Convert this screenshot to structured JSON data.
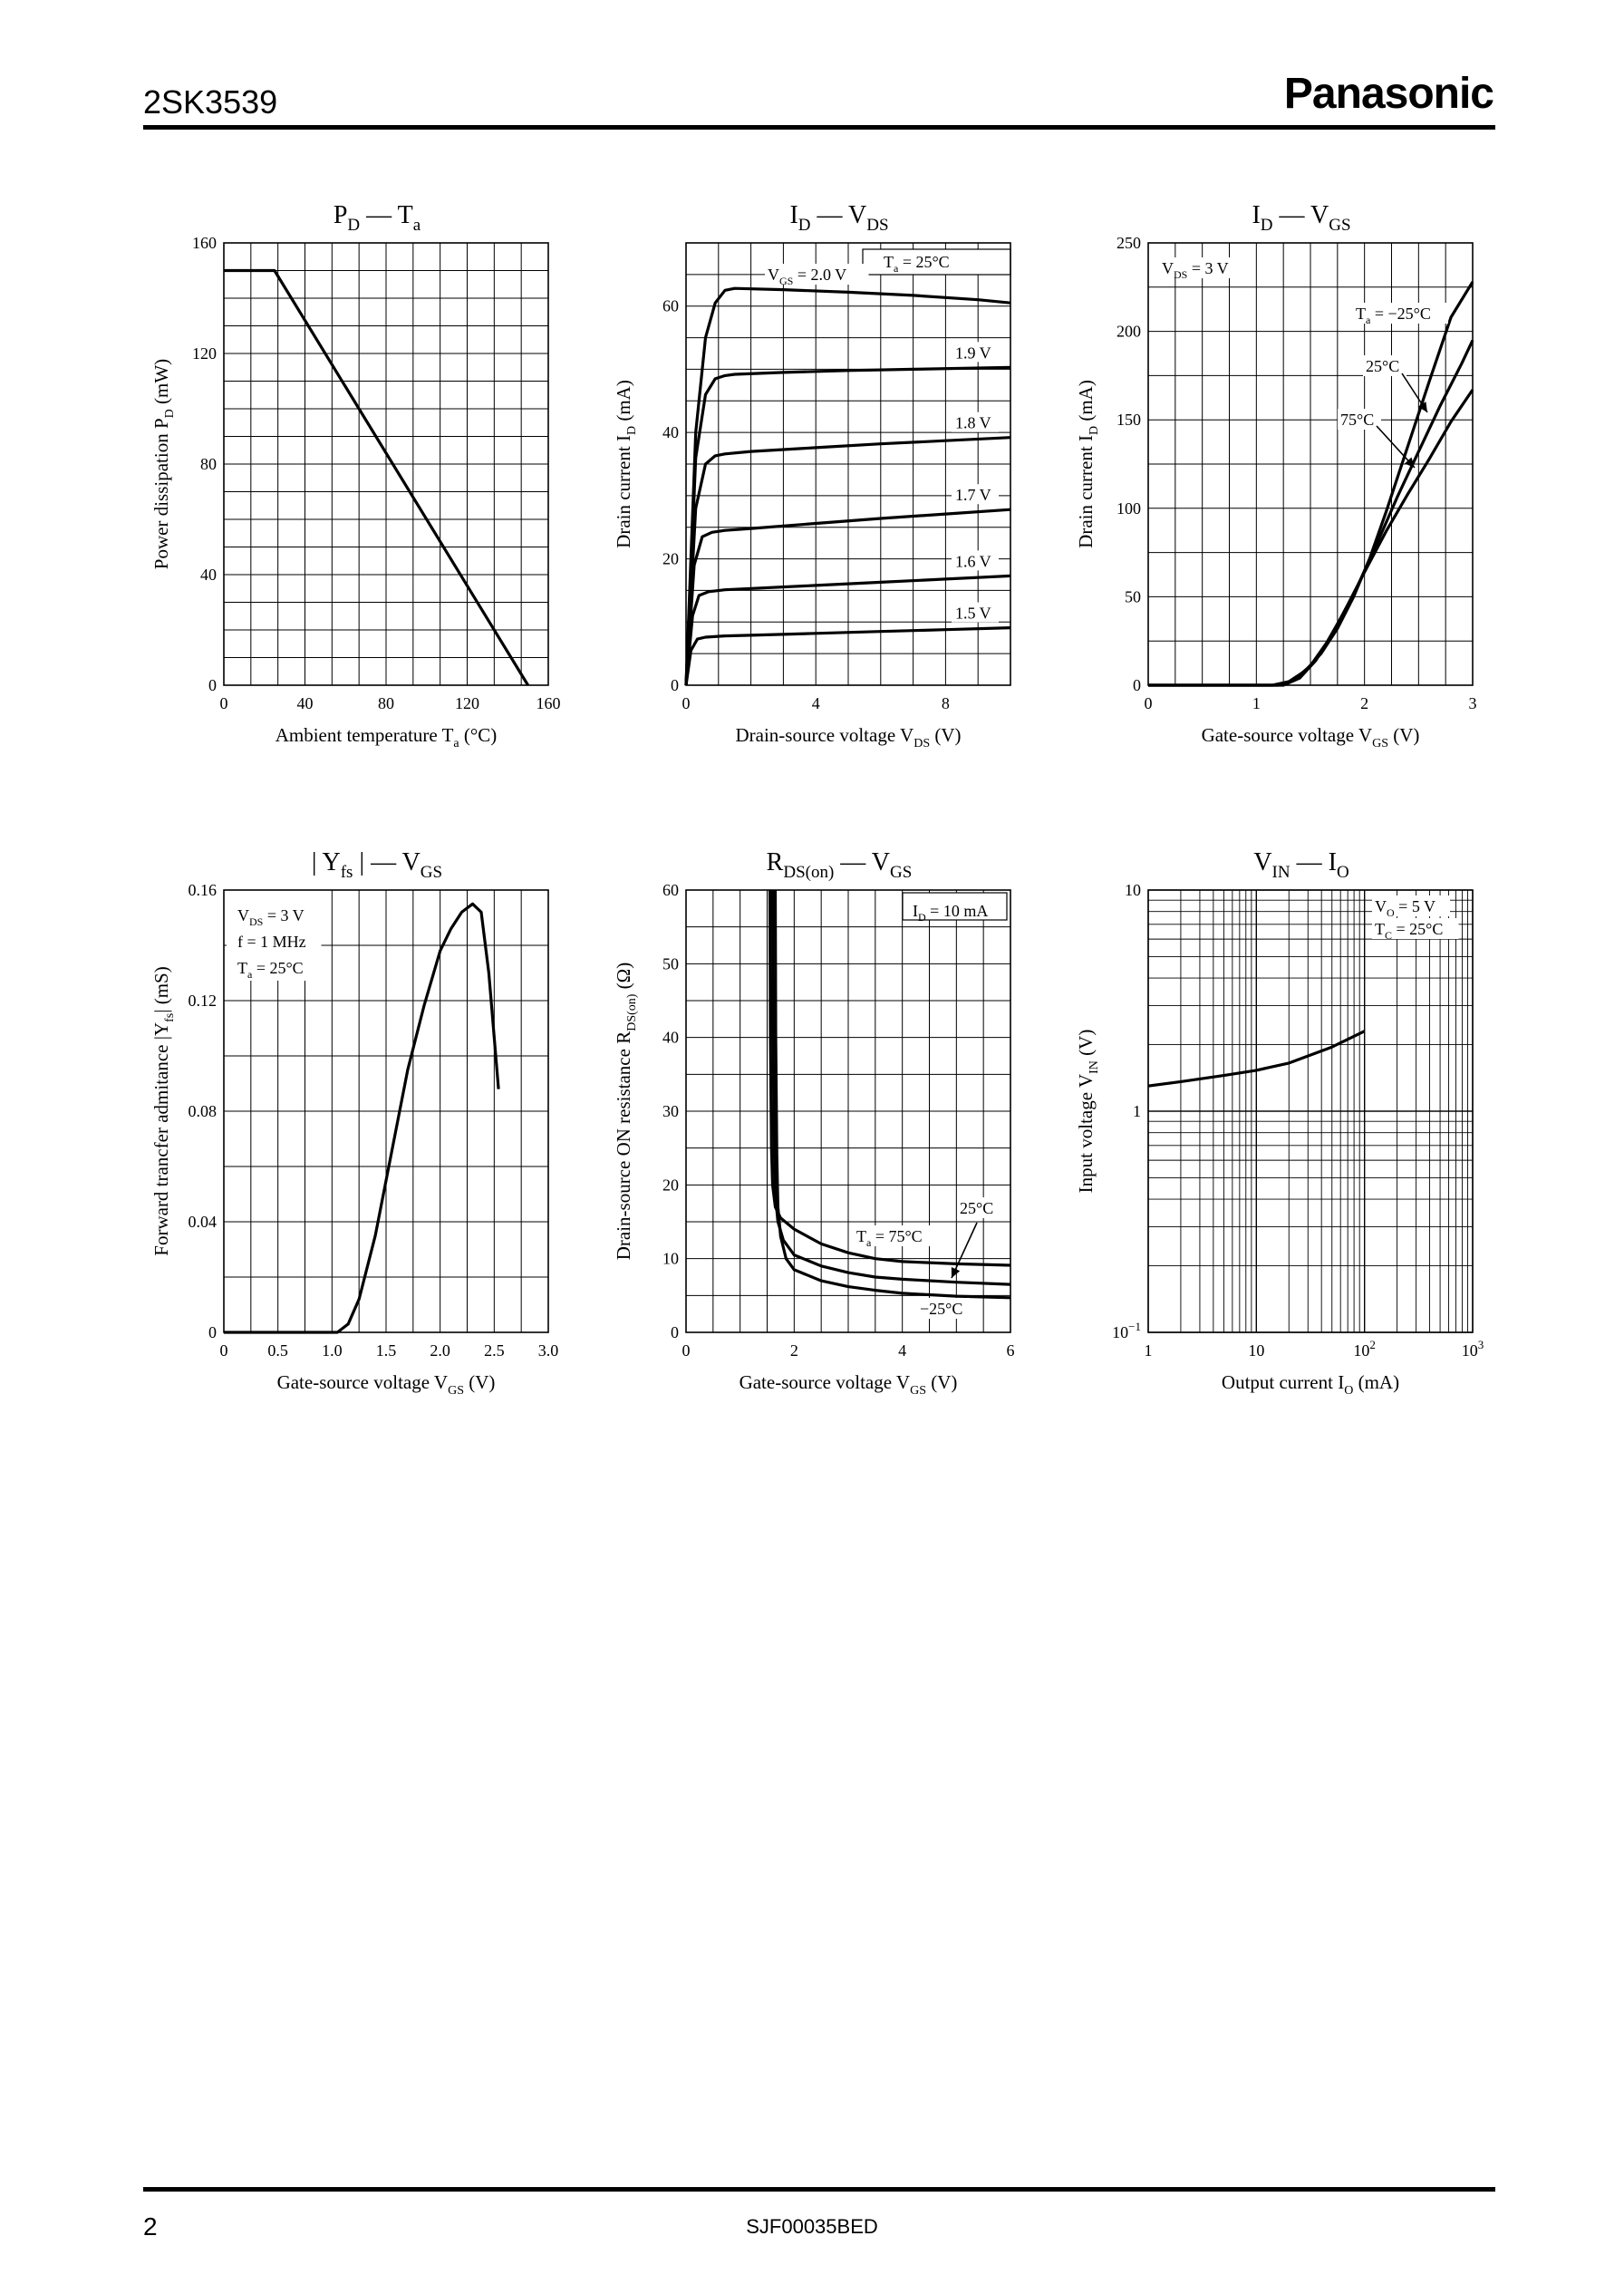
{
  "header": {
    "part_number": "2SK3539",
    "brand": "Panasonic"
  },
  "footer": {
    "page_number": "2",
    "doc_code": "SJF00035BED"
  },
  "chart_data": [
    {
      "id": "pd_ta",
      "type": "line",
      "title": {
        "main": "P",
        "main_sub": "D",
        "sep": " — ",
        "second": "T",
        "second_sub": "a"
      },
      "xlabel": {
        "pre": "Ambient temperature  T",
        "sub": "a",
        "post": "  (°C)"
      },
      "ylabel": {
        "pre": "Power dissipation  P",
        "sub": "D",
        "post": "  (mW)"
      },
      "xlim": [
        0,
        160
      ],
      "ylim": [
        0,
        160
      ],
      "grid": true,
      "xticks": [
        "0",
        "40",
        "80",
        "120",
        "160"
      ],
      "yticks": [
        "0",
        "40",
        "80",
        "120",
        "160"
      ],
      "series": [
        {
          "x": [
            0,
            25,
            150
          ],
          "y": [
            150,
            150,
            0
          ]
        }
      ]
    },
    {
      "id": "id_vds",
      "type": "line",
      "title": {
        "main": "I",
        "main_sub": "D",
        "sep": " — ",
        "second": "V",
        "second_sub": "DS"
      },
      "xlabel": {
        "pre": "Drain-source voltage  V",
        "sub": "DS",
        "post": "  (V)"
      },
      "ylabel": {
        "pre": "Drain current  I",
        "sub": "D",
        "post": "  (mA)"
      },
      "xlim": [
        0,
        10
      ],
      "ylim": [
        0,
        70
      ],
      "grid": true,
      "xticks": [
        "0",
        "4",
        "8"
      ],
      "yticks": [
        "0",
        "20",
        "40",
        "60"
      ],
      "annotations": [
        {
          "pre": "T",
          "sub": "a",
          "post": " = 25°C"
        },
        {
          "pre": "V",
          "sub": "GS",
          "post": " = 2.0 V"
        }
      ],
      "series": [
        {
          "name": "2.0 V",
          "x": [
            0,
            0.3,
            0.6,
            0.9,
            1.2,
            1.5,
            3,
            5,
            7,
            9,
            10
          ],
          "y": [
            0,
            40,
            55,
            60.5,
            62.5,
            62.8,
            62.6,
            62.2,
            61.7,
            61.0,
            60.5
          ]
        },
        {
          "name": "1.9 V",
          "x": [
            0,
            0.3,
            0.6,
            0.9,
            1.2,
            1.5,
            3,
            5,
            7,
            10
          ],
          "y": [
            0,
            36,
            46,
            48.5,
            49,
            49.2,
            49.5,
            49.8,
            50,
            50.3
          ]
        },
        {
          "name": "1.8 V",
          "x": [
            0,
            0.3,
            0.6,
            0.9,
            1.2,
            2,
            4,
            6,
            8,
            10
          ],
          "y": [
            0,
            28,
            35,
            36.3,
            36.6,
            37,
            37.6,
            38.2,
            38.7,
            39.2
          ]
        },
        {
          "name": "1.7 V",
          "x": [
            0,
            0.25,
            0.5,
            0.8,
            1.2,
            2,
            4,
            6,
            8,
            10
          ],
          "y": [
            0,
            19,
            23.5,
            24.2,
            24.5,
            24.8,
            25.6,
            26.4,
            27.1,
            27.8
          ]
        },
        {
          "name": "1.6 V",
          "x": [
            0,
            0.2,
            0.4,
            0.7,
            1.2,
            2,
            4,
            6,
            8,
            10
          ],
          "y": [
            0,
            11,
            14.2,
            14.8,
            15.1,
            15.3,
            15.8,
            16.3,
            16.8,
            17.3
          ]
        },
        {
          "name": "1.5 V",
          "x": [
            0,
            0.15,
            0.35,
            0.6,
            1.2,
            2,
            4,
            6,
            8,
            10
          ],
          "y": [
            0,
            5.5,
            7.3,
            7.6,
            7.8,
            7.9,
            8.2,
            8.5,
            8.8,
            9.1
          ]
        }
      ]
    },
    {
      "id": "id_vgs",
      "type": "line",
      "title": {
        "main": "I",
        "main_sub": "D",
        "sep": " — ",
        "second": "V",
        "second_sub": "GS"
      },
      "xlabel": {
        "pre": "Gate-source voltage  V",
        "sub": "GS",
        "post": "  (V)"
      },
      "ylabel": {
        "pre": "Drain current  I",
        "sub": "D",
        "post": "  (mA)"
      },
      "xlim": [
        0,
        3
      ],
      "ylim": [
        0,
        250
      ],
      "grid": true,
      "xticks": [
        "0",
        "1",
        "2",
        "3"
      ],
      "yticks": [
        "0",
        "50",
        "100",
        "150",
        "200",
        "250"
      ],
      "annotations": [
        {
          "pre": "V",
          "sub": "DS",
          "post": " = 3 V"
        },
        {
          "pre": "T",
          "sub": "a",
          "post": " = −25°C"
        },
        {
          "pre": "",
          "sub": "",
          "post": "25°C"
        },
        {
          "pre": "",
          "sub": "",
          "post": "75°C"
        }
      ],
      "series": [
        {
          "name": "−25°C",
          "x": [
            0,
            1.15,
            1.3,
            1.45,
            1.6,
            1.75,
            1.9,
            2.05,
            2.2,
            2.4,
            2.6,
            2.8,
            3.0
          ],
          "y": [
            0,
            0,
            2,
            8,
            18,
            32,
            50,
            72,
            98,
            135,
            172,
            208,
            228
          ]
        },
        {
          "name": "25°C",
          "x": [
            0,
            1.2,
            1.35,
            1.5,
            1.65,
            1.8,
            1.95,
            2.1,
            2.3,
            2.5,
            2.7,
            2.9,
            3.0
          ],
          "y": [
            0,
            0,
            3,
            11,
            24,
            40,
            58,
            78,
            106,
            132,
            158,
            182,
            195
          ]
        },
        {
          "name": "75°C",
          "x": [
            0,
            1.25,
            1.4,
            1.55,
            1.7,
            1.85,
            2.0,
            2.2,
            2.4,
            2.6,
            2.8,
            3.0
          ],
          "y": [
            0,
            0,
            4,
            14,
            29,
            46,
            64,
            87,
            108,
            128,
            149,
            167
          ]
        }
      ]
    },
    {
      "id": "yfs_vgs",
      "type": "line",
      "title": {
        "main": "Y",
        "main_sub": "fs",
        "sep": " — ",
        "second": "V",
        "second_sub": "GS",
        "abs": true
      },
      "xlabel": {
        "pre": "Gate-source voltage  V",
        "sub": "GS",
        "post": "  (V)"
      },
      "ylabel": {
        "pre": "Forward trancfer admitance  |Y",
        "sub": "fs",
        "post": "|  (mS)"
      },
      "xlim": [
        0,
        3.0
      ],
      "ylim": [
        0,
        0.16
      ],
      "grid": true,
      "xticks": [
        "0",
        "0.5",
        "1.0",
        "1.5",
        "2.0",
        "2.5",
        "3.0"
      ],
      "yticks": [
        "0",
        "0.04",
        "0.08",
        "0.12",
        "0.16"
      ],
      "annotations": [
        {
          "pre": "V",
          "sub": "DS",
          "post": " = 3 V"
        },
        {
          "pre": "",
          "sub": "",
          "post": "f = 1 MHz"
        },
        {
          "pre": "T",
          "sub": "a",
          "post": " = 25°C"
        }
      ],
      "series": [
        {
          "x": [
            0,
            1.05,
            1.15,
            1.25,
            1.4,
            1.55,
            1.7,
            1.85,
            2.0,
            2.1,
            2.2,
            2.3,
            2.38,
            2.45,
            2.54
          ],
          "y": [
            0,
            0,
            0.003,
            0.012,
            0.035,
            0.065,
            0.095,
            0.118,
            0.138,
            0.146,
            0.152,
            0.155,
            0.152,
            0.13,
            0.088
          ]
        }
      ]
    },
    {
      "id": "rds_vgs",
      "type": "line",
      "title": {
        "main": "R",
        "main_sub": "DS(on)",
        "sep": " — ",
        "second": "V",
        "second_sub": "GS"
      },
      "xlabel": {
        "pre": "Gate-source voltage  V",
        "sub": "GS",
        "post": "  (V)"
      },
      "ylabel": {
        "pre": "Drain-source ON resistance  R",
        "sub": "DS(on)",
        "post": "  (Ω)"
      },
      "xlim": [
        0,
        6
      ],
      "ylim": [
        0,
        60
      ],
      "grid": true,
      "xticks": [
        "0",
        "2",
        "4",
        "6"
      ],
      "yticks": [
        "0",
        "10",
        "20",
        "30",
        "40",
        "50",
        "60"
      ],
      "annotations": [
        {
          "pre": "I",
          "sub": "D",
          "post": " = 10 mA"
        },
        {
          "pre": "",
          "sub": "",
          "post": "25°C"
        },
        {
          "pre": "T",
          "sub": "a",
          "post": " = 75°C"
        },
        {
          "pre": "",
          "sub": "",
          "post": "−25°C"
        }
      ],
      "series": [
        {
          "name": "75°C",
          "x": [
            1.55,
            1.56,
            1.58,
            1.6,
            1.65,
            1.75,
            2,
            2.5,
            3,
            3.5,
            4,
            5,
            6
          ],
          "y": [
            60,
            40,
            25,
            20,
            17,
            15.5,
            14,
            12,
            10.8,
            10,
            9.6,
            9.3,
            9.1
          ]
        },
        {
          "name": "25°C",
          "x": [
            1.6,
            1.61,
            1.63,
            1.66,
            1.7,
            1.8,
            2,
            2.5,
            3,
            3.5,
            4,
            5,
            6
          ],
          "y": [
            60,
            40,
            25,
            18,
            15,
            12.5,
            10.5,
            9,
            8.1,
            7.5,
            7.2,
            6.8,
            6.5
          ]
        },
        {
          "name": "−25°C",
          "x": [
            1.65,
            1.66,
            1.68,
            1.7,
            1.75,
            1.85,
            2,
            2.5,
            3,
            3.5,
            4,
            5,
            6
          ],
          "y": [
            60,
            40,
            24,
            17,
            13,
            10,
            8.5,
            7,
            6.2,
            5.7,
            5.3,
            4.9,
            4.7
          ]
        }
      ]
    },
    {
      "id": "vin_io",
      "type": "line",
      "title": {
        "main": "V",
        "main_sub": "IN",
        "sep": " — ",
        "second": "I",
        "second_sub": "O"
      },
      "xlabel": {
        "pre": "Output current  I",
        "sub": "O",
        "post": "  (mA)"
      },
      "ylabel": {
        "pre": "Input voltage  V",
        "sub": "IN",
        "post": "  (V)"
      },
      "xscale": "log",
      "yscale": "log",
      "xlim": [
        1,
        1000
      ],
      "ylim": [
        0.1,
        10
      ],
      "grid": true,
      "xticks": [
        {
          "b": "1",
          "e": ""
        },
        {
          "b": "10",
          "e": ""
        },
        {
          "b": "10",
          "e": "2"
        },
        {
          "b": "10",
          "e": "3"
        }
      ],
      "yticks": [
        {
          "b": "10",
          "e": "−1"
        },
        {
          "b": "1",
          "e": ""
        },
        {
          "b": "10",
          "e": ""
        }
      ],
      "annotations": [
        {
          "pre": "V",
          "sub": "O",
          "post": " = 5 V"
        },
        {
          "pre": "T",
          "sub": "C",
          "post": " = 25°C"
        }
      ],
      "series": [
        {
          "x": [
            1,
            2,
            5,
            10,
            20,
            50,
            100
          ],
          "y": [
            1.3,
            1.36,
            1.45,
            1.53,
            1.65,
            1.95,
            2.3
          ]
        }
      ]
    }
  ]
}
